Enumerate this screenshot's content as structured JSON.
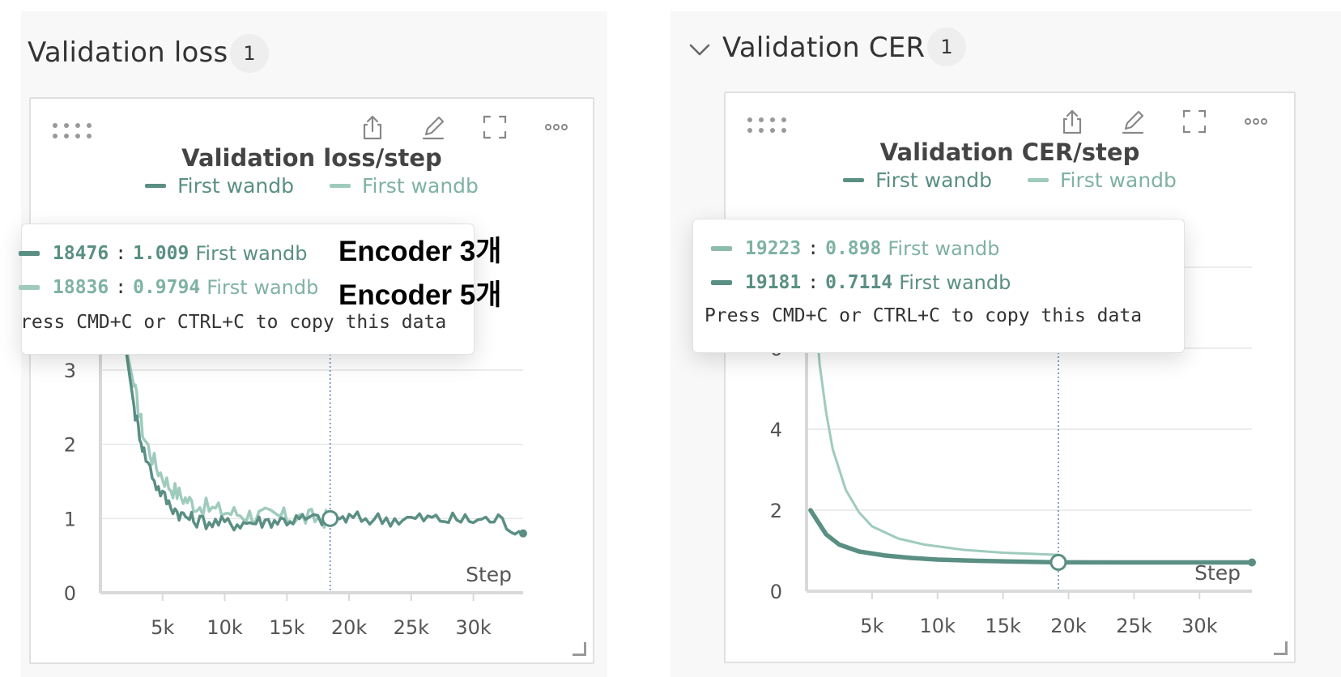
{
  "colors": {
    "dark_series": "#5a8f83",
    "light_series": "#9fcbbd",
    "grid": "#e6e6e6",
    "axis": "#d9d9d9",
    "tick_text": "#555555",
    "crosshair": "#5b7fb8"
  },
  "icons": [
    "drag-handle-icon",
    "share-icon",
    "edit-icon",
    "fullscreen-icon",
    "more-icon",
    "chevron-down-icon",
    "resize-corner-icon"
  ],
  "left": {
    "section_title": "Validation loss",
    "count": "1",
    "chart_title": "Validation loss/step",
    "legend": [
      {
        "label": "First wandb",
        "color": "#5a8f83"
      },
      {
        "label": "First wandb",
        "color": "#9fcbbd"
      }
    ],
    "tooltip": {
      "rows": [
        {
          "step": "18476",
          "value": "1.009",
          "run": "First wandb",
          "color": "#5a8f83"
        },
        {
          "step": "18836",
          "value": "0.9794",
          "run": "First wandb",
          "color": "#9fcbbd"
        }
      ],
      "hint": "ress CMD+C or CTRL+C to copy this data"
    },
    "annotations": [
      "Encoder 3개",
      "Encoder 5개"
    ],
    "x_axis_label": "Step"
  },
  "right": {
    "section_title": "Validation CER",
    "count": "1",
    "chart_title": "Validation CER/step",
    "legend": [
      {
        "label": "First wandb",
        "color": "#5a8f83"
      },
      {
        "label": "First wandb",
        "color": "#9fcbbd"
      }
    ],
    "tooltip": {
      "rows": [
        {
          "step": "19223",
          "value": "0.898",
          "run": "First wandb",
          "color": "#8fbaae"
        },
        {
          "step": "19181",
          "value": "0.7114",
          "run": "First wandb",
          "color": "#5a8f83"
        }
      ],
      "hint": "Press CMD+C or CTRL+C to copy this data"
    },
    "x_axis_label": "Step"
  },
  "chart_data": [
    {
      "type": "line",
      "title": "Validation loss/step",
      "xlabel": "Step",
      "ylabel": "",
      "xlim": [
        0,
        34000
      ],
      "ylim": [
        0,
        3.6
      ],
      "x_ticks": [
        "5k",
        "10k",
        "15k",
        "20k",
        "25k",
        "30k"
      ],
      "y_ticks": [
        "0",
        "1",
        "2",
        "3"
      ],
      "grid": true,
      "crosshair_x": 18476,
      "series": [
        {
          "name": "First wandb",
          "color": "#9fcbbd",
          "width": 3.5,
          "noise": 0.13,
          "x": [
            1800,
            2200,
            2800,
            3500,
            4500,
            5500,
            6500,
            7500,
            9000,
            10500,
            12000,
            13500,
            15000,
            16500,
            18000,
            18836
          ],
          "y": [
            3.6,
            3.2,
            2.7,
            2.1,
            1.7,
            1.45,
            1.3,
            1.2,
            1.12,
            1.08,
            1.05,
            1.03,
            1.02,
            1.01,
            1.0,
            0.98
          ]
        },
        {
          "name": "First wandb",
          "color": "#5a8f83",
          "width": 3.5,
          "noise": 0.1,
          "x": [
            1800,
            2200,
            2800,
            3500,
            4500,
            5500,
            6500,
            7500,
            9000,
            10500,
            12000,
            13500,
            15000,
            16500,
            18476,
            20000,
            22000,
            24000,
            26000,
            28000,
            30000,
            32000,
            34000
          ],
          "y": [
            3.6,
            3.1,
            2.4,
            1.9,
            1.45,
            1.2,
            1.05,
            0.98,
            0.95,
            0.93,
            0.95,
            0.97,
            0.98,
            0.99,
            1.0,
            1.0,
            1.0,
            0.99,
            1.0,
            0.99,
            0.98,
            0.99,
            0.8
          ]
        }
      ]
    },
    {
      "type": "line",
      "title": "Validation CER/step",
      "xlabel": "Step",
      "ylabel": "",
      "xlim": [
        0,
        34000
      ],
      "ylim": [
        0,
        9
      ],
      "x_ticks": [
        "5k",
        "10k",
        "15k",
        "20k",
        "25k",
        "30k"
      ],
      "y_ticks": [
        "0",
        "2",
        "4",
        "6",
        "8"
      ],
      "grid": true,
      "crosshair_x": 19223,
      "series": [
        {
          "name": "First wandb",
          "color": "#9fcbbd",
          "width": 3,
          "noise": 0,
          "x": [
            300,
            600,
            1000,
            1500,
            2000,
            3000,
            4000,
            5000,
            7000,
            9000,
            12000,
            15000,
            19223
          ],
          "y": [
            9.0,
            7.2,
            5.6,
            4.4,
            3.5,
            2.5,
            1.95,
            1.6,
            1.3,
            1.15,
            1.02,
            0.95,
            0.898
          ]
        },
        {
          "name": "First wandb",
          "color": "#5a8f83",
          "width": 5.5,
          "noise": 0,
          "x": [
            300,
            800,
            1500,
            2500,
            4000,
            6000,
            8000,
            10000,
            13000,
            16000,
            19181,
            24000,
            28000,
            34000
          ],
          "y": [
            2.0,
            1.75,
            1.4,
            1.15,
            0.98,
            0.88,
            0.82,
            0.78,
            0.75,
            0.73,
            0.7114,
            0.71,
            0.71,
            0.71
          ]
        }
      ]
    }
  ]
}
